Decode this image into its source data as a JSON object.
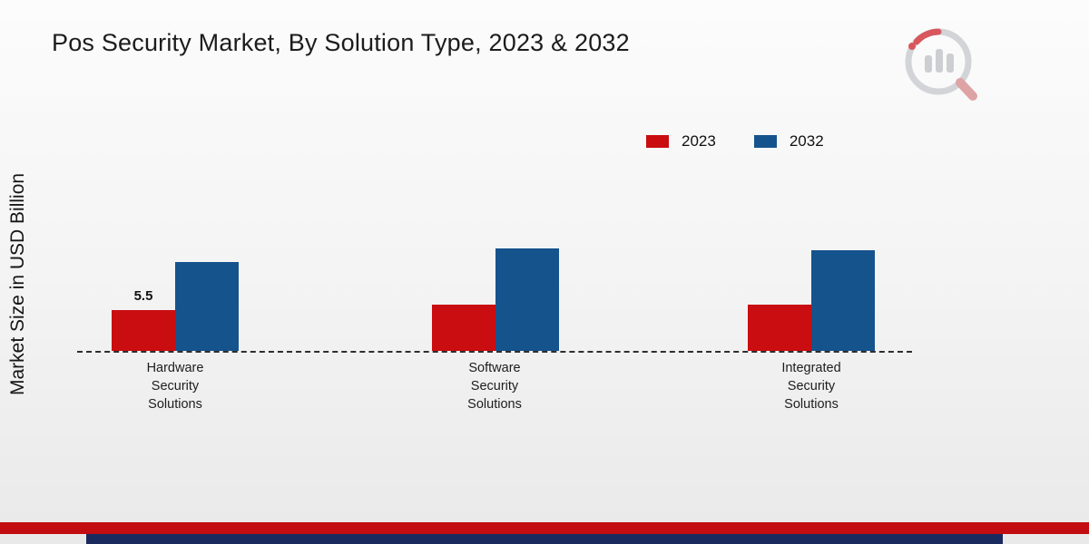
{
  "title": "Pos Security Market, By Solution Type, 2023 & 2032",
  "ylabel": "Market Size in USD Billion",
  "colors": {
    "series_2023": "#c90d10",
    "series_2032": "#15538c",
    "band_red": "#c30d10",
    "band_navy": "#1b2a5e",
    "baseline": "#2e2e2e"
  },
  "legend": [
    {
      "label": "2023",
      "color": "#c90d10"
    },
    {
      "label": "2032",
      "color": "#15538c"
    }
  ],
  "chart_data": {
    "type": "bar",
    "title": "Pos Security Market, By Solution Type, 2023 & 2032",
    "xlabel": "",
    "ylabel": "Market Size in USD Billion",
    "categories": [
      "Hardware Security Solutions",
      "Software Security Solutions",
      "Integrated Security Solutions"
    ],
    "series": [
      {
        "name": "2023",
        "color": "#c90d10",
        "values": [
          5.5,
          6.2,
          6.2
        ]
      },
      {
        "name": "2032",
        "color": "#15538c",
        "values": [
          12.0,
          13.8,
          13.5
        ]
      }
    ],
    "annotations": [
      {
        "series": "2023",
        "category_index": 0,
        "text": "5.5"
      }
    ],
    "ylim": [
      0,
      16
    ],
    "baseline_style": "dashed",
    "grid": false,
    "legend_position": "top-right"
  }
}
